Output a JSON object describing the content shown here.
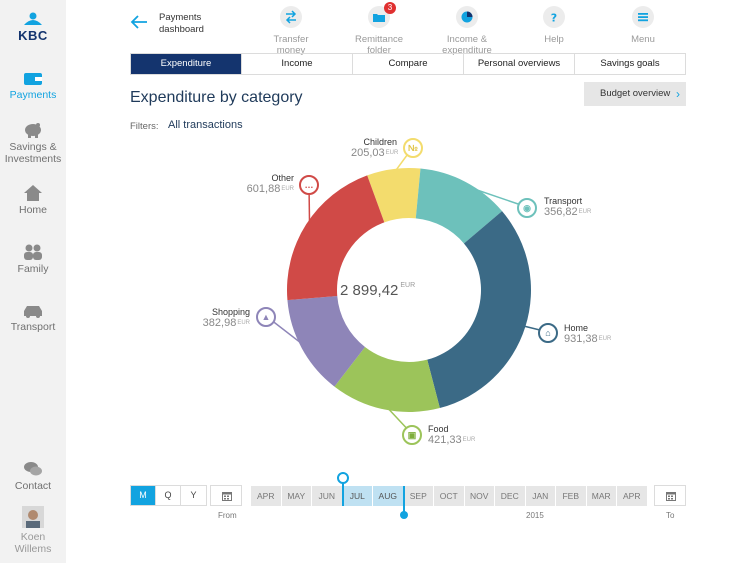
{
  "brand": {
    "logo_text": "KBC",
    "primary": "#14346e",
    "accent": "#12a3e0"
  },
  "sidebar": {
    "items": [
      {
        "label": "Payments",
        "icon": "wallet-icon",
        "active": true
      },
      {
        "label": "Savings & Investments",
        "icon": "piggy-bank-icon",
        "active": false
      },
      {
        "label": "Home",
        "icon": "house-icon",
        "active": false
      },
      {
        "label": "Family",
        "icon": "people-icon",
        "active": false
      },
      {
        "label": "Transport",
        "icon": "car-icon",
        "active": false
      }
    ],
    "contact_label": "Contact",
    "user_name": "Koen Willems"
  },
  "toolbar": {
    "back_label": "Payments dashboard",
    "tools": [
      {
        "label": "Transfer money",
        "icon": "transfer-icon"
      },
      {
        "label": "Remittance folder",
        "icon": "folder-icon",
        "badge": "3"
      },
      {
        "label": "Income & expenditure",
        "icon": "pie-icon"
      },
      {
        "label": "Help",
        "icon": "help-icon"
      },
      {
        "label": "Menu",
        "icon": "menu-icon"
      }
    ]
  },
  "tabs": [
    "Expenditure",
    "Income",
    "Compare",
    "Personal overviews",
    "Savings goals"
  ],
  "active_tab": "Expenditure",
  "main": {
    "title": "Expenditure by category",
    "filters_label": "Filters:",
    "filters_value": "All transactions",
    "budget_button": "Budget overview"
  },
  "chart_data": {
    "type": "pie",
    "donut": true,
    "total": "2 899,42",
    "currency": "EUR",
    "series": [
      {
        "name": "Children",
        "value": 205.03,
        "label": "205,03",
        "color": "#f3dc6d"
      },
      {
        "name": "Transport",
        "value": 356.82,
        "label": "356,82",
        "color": "#6dc1bb"
      },
      {
        "name": "Home",
        "value": 931.38,
        "label": "931,38",
        "color": "#3b6a86"
      },
      {
        "name": "Food",
        "value": 421.33,
        "label": "421,33",
        "color": "#9cc45a"
      },
      {
        "name": "Shopping",
        "value": 382.98,
        "label": "382,98",
        "color": "#8e85b8"
      },
      {
        "name": "Other",
        "value": 601.88,
        "label": "601,88",
        "color": "#d04a47"
      }
    ]
  },
  "timeline": {
    "periods": [
      "M",
      "Q",
      "Y"
    ],
    "selected_period": "M",
    "from_label": "From",
    "to_label": "To",
    "months": [
      "APR",
      "MAY",
      "JUN",
      "JUL",
      "AUG",
      "SEP",
      "OCT",
      "NOV",
      "DEC",
      "JAN",
      "FEB",
      "MAR",
      "APR"
    ],
    "highlighted": [
      "JUL",
      "AUG"
    ],
    "year_label": "2015"
  }
}
